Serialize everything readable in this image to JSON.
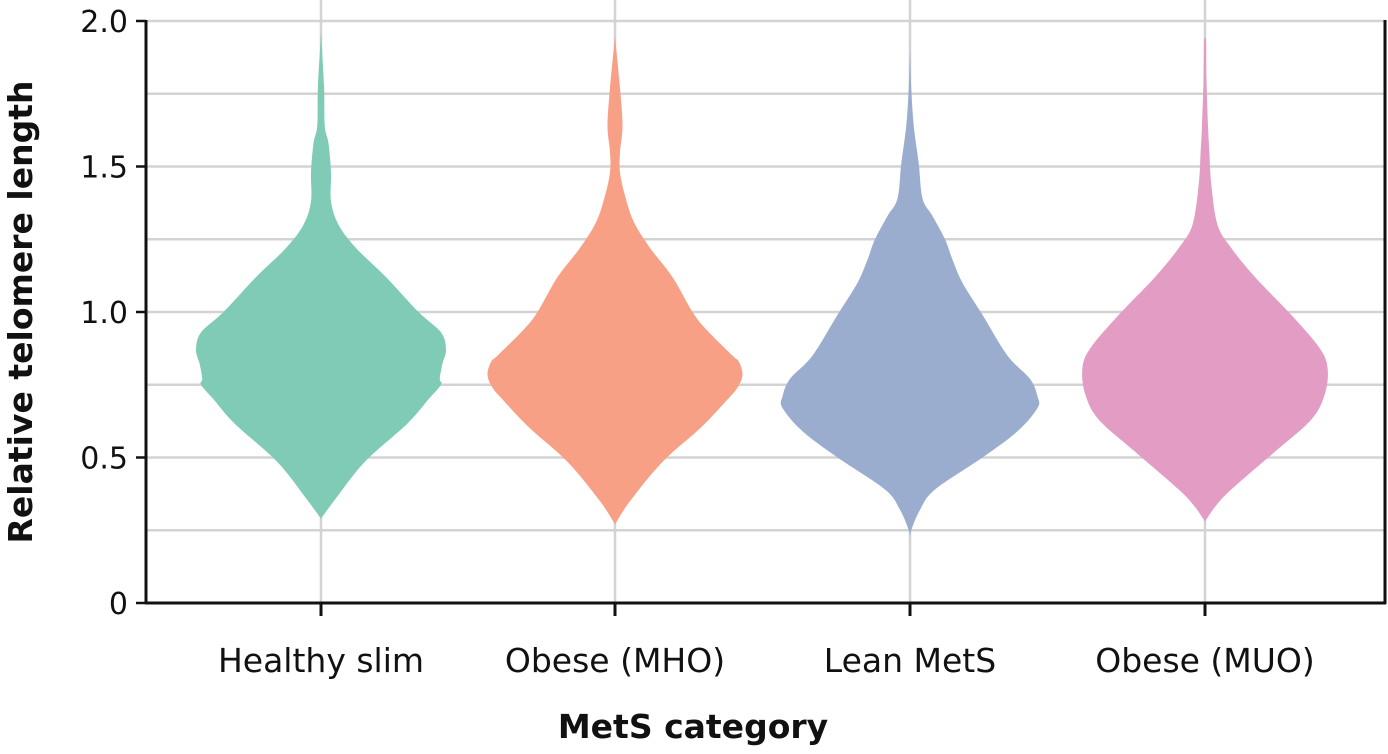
{
  "chart_data": {
    "type": "violin",
    "xlabel": "MetS category",
    "ylabel": "Relative telomere length",
    "ylim": [
      0,
      2.0
    ],
    "yticks": [
      {
        "value": 0,
        "label": "0"
      },
      {
        "value": 0.5,
        "label": "0.5"
      },
      {
        "value": 1.0,
        "label": "1.0"
      },
      {
        "value": 1.5,
        "label": "1.5"
      },
      {
        "value": 2.0,
        "label": "2.0"
      }
    ],
    "minor_gridlines": [
      0.25,
      0.75,
      1.25,
      1.75
    ],
    "grid": true,
    "categories": [
      "Healthy slim",
      "Obese (MHO)",
      "Lean MetS",
      "Obese (MUO)"
    ],
    "series": [
      {
        "name": "Healthy slim",
        "color": "#7fcbb5",
        "density_profile": [
          [
            0.29,
            0
          ],
          [
            0.36,
            0.12
          ],
          [
            0.485,
            0.35
          ],
          [
            0.616,
            0.69
          ],
          [
            0.7,
            0.86
          ],
          [
            0.75,
            0.96
          ],
          [
            0.77,
            0.95
          ],
          [
            0.82,
            0.97
          ],
          [
            0.87,
            1.0
          ],
          [
            0.93,
            0.96
          ],
          [
            1.0,
            0.78
          ],
          [
            1.12,
            0.52
          ],
          [
            1.22,
            0.28
          ],
          [
            1.3,
            0.14
          ],
          [
            1.38,
            0.08
          ],
          [
            1.48,
            0.08
          ],
          [
            1.58,
            0.06
          ],
          [
            1.64,
            0.03
          ],
          [
            1.77,
            0.025
          ],
          [
            1.93,
            0.004
          ],
          [
            1.96,
            0
          ]
        ]
      },
      {
        "name": "Obese (MHO)",
        "color": "#f7a086",
        "density_profile": [
          [
            0.27,
            0
          ],
          [
            0.35,
            0.12
          ],
          [
            0.485,
            0.38
          ],
          [
            0.6,
            0.68
          ],
          [
            0.69,
            0.88
          ],
          [
            0.74,
            0.98
          ],
          [
            0.785,
            1.02
          ],
          [
            0.83,
            0.99
          ],
          [
            0.85,
            0.94
          ],
          [
            0.94,
            0.73
          ],
          [
            1.0,
            0.62
          ],
          [
            1.12,
            0.46
          ],
          [
            1.22,
            0.28
          ],
          [
            1.31,
            0.15
          ],
          [
            1.4,
            0.08
          ],
          [
            1.48,
            0.04
          ],
          [
            1.55,
            0.04
          ],
          [
            1.64,
            0.06
          ],
          [
            1.77,
            0.04
          ],
          [
            1.93,
            0.004
          ],
          [
            1.95,
            0
          ]
        ]
      },
      {
        "name": "Lean MetS",
        "color": "#9aadcf",
        "density_profile": [
          [
            0.22,
            0
          ],
          [
            0.25,
            0.01
          ],
          [
            0.32,
            0.08
          ],
          [
            0.39,
            0.2
          ],
          [
            0.5,
            0.58
          ],
          [
            0.59,
            0.86
          ],
          [
            0.67,
            1.02
          ],
          [
            0.71,
            1.02
          ],
          [
            0.77,
            0.96
          ],
          [
            0.85,
            0.78
          ],
          [
            0.99,
            0.58
          ],
          [
            1.1,
            0.42
          ],
          [
            1.18,
            0.34
          ],
          [
            1.25,
            0.28
          ],
          [
            1.33,
            0.18
          ],
          [
            1.39,
            0.1
          ],
          [
            1.51,
            0.07
          ],
          [
            1.64,
            0.03
          ],
          [
            1.77,
            0.01
          ],
          [
            1.9,
            0
          ]
        ]
      },
      {
        "name": "Obese (MUO)",
        "color": "#e39cc4",
        "density_profile": [
          [
            0.28,
            0
          ],
          [
            0.33,
            0.08
          ],
          [
            0.39,
            0.21
          ],
          [
            0.52,
            0.56
          ],
          [
            0.63,
            0.85
          ],
          [
            0.72,
            0.96
          ],
          [
            0.81,
            0.98
          ],
          [
            0.88,
            0.91
          ],
          [
            0.99,
            0.69
          ],
          [
            1.12,
            0.4
          ],
          [
            1.22,
            0.21
          ],
          [
            1.3,
            0.1
          ],
          [
            1.44,
            0.05
          ],
          [
            1.55,
            0.035
          ],
          [
            1.64,
            0.024
          ],
          [
            1.8,
            0.012
          ],
          [
            1.93,
            0.008
          ],
          [
            1.94,
            0
          ]
        ]
      }
    ]
  }
}
